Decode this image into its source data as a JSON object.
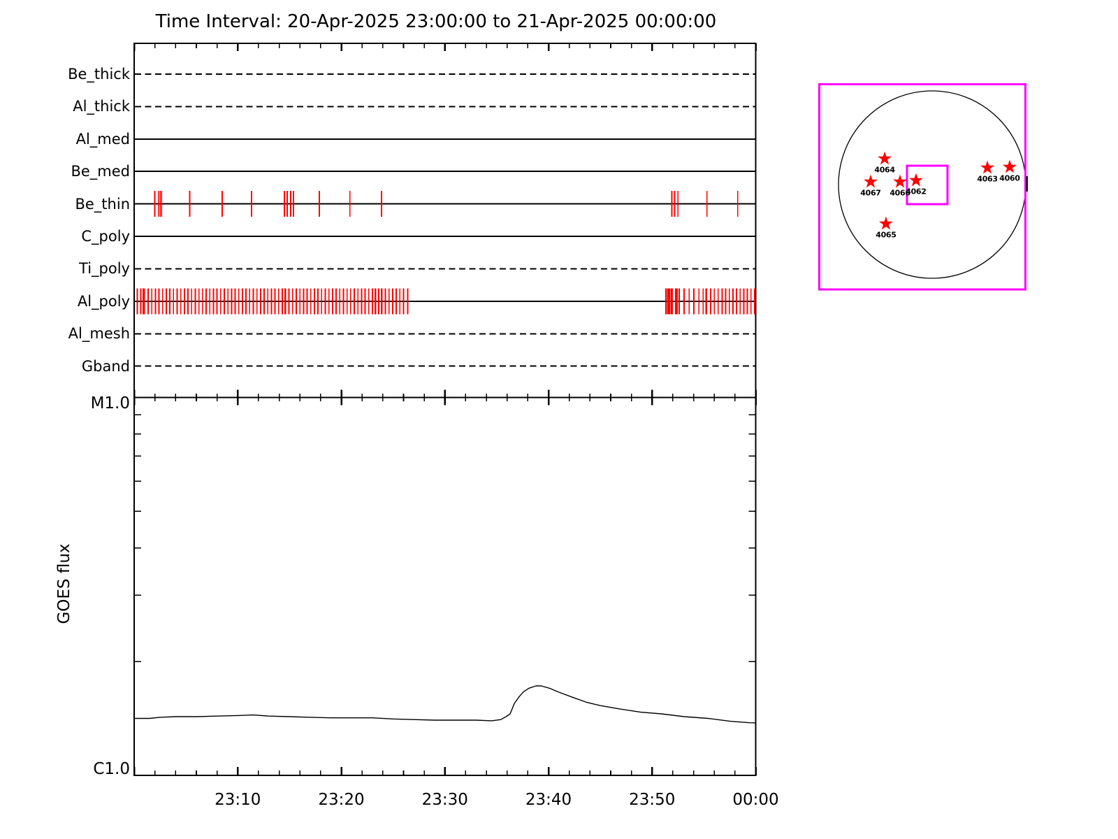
{
  "title": "Time Interval: 20-Apr-2025 23:00:00 to 21-Apr-2025 00:00:00",
  "colors": {
    "axis": "#000000",
    "exposure_tick": "#ff0000",
    "inset_frame": "#ff00ff",
    "background": "#ffffff"
  },
  "chart_data": [
    {
      "type": "timeline",
      "name": "xrt-filter-exposure-timeline",
      "x_range_minutes": [
        0,
        60
      ],
      "filters": [
        {
          "name": "Be_thick",
          "line_style": "dashed",
          "exposures_min": []
        },
        {
          "name": "Al_thick",
          "line_style": "dashed",
          "exposures_min": []
        },
        {
          "name": "Al_med",
          "line_style": "solid",
          "exposures_min": []
        },
        {
          "name": "Be_med",
          "line_style": "solid",
          "exposures_min": []
        },
        {
          "name": "Be_thin",
          "line_style": "solid",
          "exposures_min": [
            1.98,
            2.34,
            2.51,
            2.65,
            5.37,
            8.5,
            11.33,
            14.5,
            14.77,
            15.1,
            15.37,
            17.87,
            20.83,
            23.87,
            51.9,
            52.17,
            52.5,
            55.3,
            58.26
          ]
        },
        {
          "name": "C_poly",
          "line_style": "solid",
          "exposures_min": []
        },
        {
          "name": "Ti_poly",
          "line_style": "dashed",
          "exposures_min": []
        },
        {
          "name": "Al_poly",
          "line_style": "solid",
          "exposures_min": [
            0.3,
            0.65,
            0.88,
            0.92,
            1.0,
            1.35,
            1.7,
            2.05,
            2.4,
            2.75,
            3.1,
            3.45,
            3.8,
            4.15,
            4.5,
            4.85,
            5.2,
            5.55,
            5.9,
            6.25,
            6.6,
            6.95,
            7.3,
            7.65,
            8.0,
            8.35,
            8.7,
            9.05,
            9.4,
            9.75,
            10.1,
            10.45,
            10.8,
            11.15,
            11.5,
            11.85,
            12.2,
            12.55,
            12.9,
            13.25,
            13.6,
            13.95,
            14.3,
            14.55,
            14.6,
            14.95,
            15.3,
            15.65,
            16.0,
            16.35,
            16.7,
            17.05,
            17.4,
            17.75,
            18.1,
            18.45,
            18.8,
            19.15,
            19.5,
            19.85,
            20.2,
            20.55,
            20.9,
            21.25,
            21.6,
            21.95,
            22.3,
            22.65,
            23.0,
            23.28,
            23.32,
            23.6,
            23.87,
            23.93,
            24.25,
            24.6,
            24.95,
            25.3,
            25.65,
            26.0,
            26.4,
            51.33,
            51.5,
            51.55,
            51.67,
            51.83,
            51.96,
            52.27,
            52.41,
            52.61,
            53.08,
            53.58,
            54.03,
            54.52,
            54.93,
            55.2,
            55.24,
            55.64,
            56.01,
            56.38,
            56.77,
            57.1,
            57.45,
            57.8,
            58.15,
            58.5,
            58.85,
            59.2,
            59.55,
            59.9
          ]
        },
        {
          "name": "Al_mesh",
          "line_style": "dashed",
          "exposures_min": []
        },
        {
          "name": "Gband",
          "line_style": "dashed",
          "exposures_min": []
        }
      ]
    },
    {
      "type": "line",
      "name": "goes-flux",
      "ylabel": "GOES flux",
      "y_scale": "log",
      "y_top_label": "M1.0",
      "y_bottom_label": "C1.0",
      "y_range_flux_1e6": [
        1,
        10
      ],
      "y_minor_ticks_flux_1e6": [
        2,
        3,
        4,
        5,
        6,
        7,
        8,
        9
      ],
      "time_start": "23:00",
      "time_end": "00:00",
      "x_major_every_min": 10,
      "x_minor_every_min": 2,
      "x_tick_labels": [
        "23:10",
        "23:20",
        "23:30",
        "23:40",
        "23:50",
        "00:00"
      ],
      "series": [
        {
          "name": "GOES flux",
          "points_min_flux1e6": [
            [
              0,
              1.415
            ],
            [
              1.5,
              1.415
            ],
            [
              2.5,
              1.425
            ],
            [
              4,
              1.43
            ],
            [
              6,
              1.43
            ],
            [
              8,
              1.435
            ],
            [
              10,
              1.44
            ],
            [
              11.5,
              1.445
            ],
            [
              13,
              1.435
            ],
            [
              15,
              1.43
            ],
            [
              17,
              1.425
            ],
            [
              19,
              1.42
            ],
            [
              21,
              1.42
            ],
            [
              23,
              1.42
            ],
            [
              25,
              1.41
            ],
            [
              27,
              1.405
            ],
            [
              29,
              1.4
            ],
            [
              31,
              1.4
            ],
            [
              33,
              1.4
            ],
            [
              34.5,
              1.395
            ],
            [
              35.4,
              1.405
            ],
            [
              35.9,
              1.43
            ],
            [
              36.3,
              1.455
            ],
            [
              36.7,
              1.55
            ],
            [
              37.2,
              1.62
            ],
            [
              37.6,
              1.665
            ],
            [
              38.1,
              1.7
            ],
            [
              38.8,
              1.725
            ],
            [
              39.3,
              1.725
            ],
            [
              40.1,
              1.7
            ],
            [
              41,
              1.66
            ],
            [
              42.3,
              1.61
            ],
            [
              43.7,
              1.56
            ],
            [
              45,
              1.53
            ],
            [
              46.8,
              1.5
            ],
            [
              48.9,
              1.47
            ],
            [
              50.9,
              1.455
            ],
            [
              53.1,
              1.43
            ],
            [
              55.4,
              1.415
            ],
            [
              57.6,
              1.39
            ],
            [
              59.4,
              1.378
            ],
            [
              60,
              1.377
            ]
          ]
        }
      ]
    },
    {
      "type": "solar-disk-inset",
      "name": "full-disk-active-region-map",
      "frame_color": "#ff00ff",
      "marker_color": "#ff0000",
      "active_regions": [
        {
          "noaa": "4064",
          "dx": -0.507,
          "dy": -0.276
        },
        {
          "noaa": "4067",
          "dx": -0.657,
          "dy": -0.03
        },
        {
          "noaa": "4066",
          "dx": -0.343,
          "dy": -0.03
        },
        {
          "noaa": "4062",
          "dx": -0.172,
          "dy": -0.045
        },
        {
          "noaa": "4063",
          "dx": 0.59,
          "dy": -0.179
        },
        {
          "noaa": "4060",
          "dx": 0.828,
          "dy": -0.187
        },
        {
          "noaa": "4065",
          "dx": -0.493,
          "dy": 0.418
        }
      ],
      "fov_box": {
        "x0": -0.269,
        "y0": -0.201,
        "x1": 0.164,
        "y1": 0.209
      }
    }
  ]
}
